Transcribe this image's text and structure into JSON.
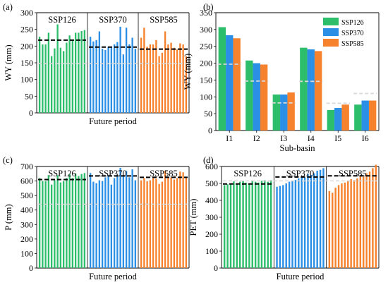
{
  "colors": {
    "SSP126": "#2dbe6c",
    "SSP370": "#2b8fe6",
    "SSP585": "#f6822d",
    "mean_line": "#000000",
    "ref_line": "#d8d8d8"
  },
  "chart_data": [
    {
      "id": "a",
      "type": "bar",
      "panel_label": "(a)",
      "xlabel": "Future period",
      "ylabel": "WY (mm)",
      "ylim": [
        0,
        300
      ],
      "yticks": [
        0,
        50,
        100,
        150,
        200,
        250,
        300
      ],
      "grid": false,
      "series": [
        {
          "name": "SSP126",
          "values": [
            228,
            205,
            205,
            240,
            170,
            193,
            265,
            195,
            185,
            210,
            232,
            218,
            240,
            240,
            245,
            248
          ]
        },
        {
          "name": "SSP370",
          "values": [
            228,
            214,
            218,
            244,
            192,
            188,
            198,
            195,
            205,
            212,
            258,
            175,
            255,
            205,
            225,
            192
          ]
        },
        {
          "name": "SSP585",
          "values": [
            225,
            255,
            198,
            205,
            205,
            218,
            170,
            180,
            244,
            205,
            210,
            195,
            190,
            208,
            205,
            170
          ]
        }
      ],
      "mean_lines": [
        218,
        197,
        191
      ],
      "reference_value": 148
    },
    {
      "id": "b",
      "type": "bar",
      "panel_label": "(b)",
      "xlabel": "Sub-basin",
      "ylabel": "WY (mm)",
      "ylim": [
        0,
        350
      ],
      "yticks": [
        0,
        50,
        100,
        150,
        200,
        250,
        300,
        350
      ],
      "grid": false,
      "legend": "top-right",
      "categories": [
        "I1",
        "I2",
        "I3",
        "I4",
        "I5",
        "I6"
      ],
      "series": [
        {
          "name": "SSP126",
          "values": [
            307,
            208,
            107,
            246,
            61,
            77
          ]
        },
        {
          "name": "SSP370",
          "values": [
            283,
            200,
            107,
            241,
            67,
            89
          ]
        },
        {
          "name": "SSP585",
          "values": [
            274,
            196,
            113,
            236,
            77,
            89
          ]
        }
      ],
      "reference_values": [
        197,
        147,
        82,
        146,
        81,
        110
      ]
    },
    {
      "id": "c",
      "type": "bar",
      "panel_label": "(c)",
      "xlabel": "Future period",
      "ylabel": "P (mm)",
      "ylim": [
        0,
        700
      ],
      "yticks": [
        0,
        100,
        200,
        300,
        400,
        500,
        600,
        700
      ],
      "grid": false,
      "series": [
        {
          "name": "SSP126",
          "values": [
            620,
            600,
            600,
            640,
            575,
            605,
            640,
            590,
            600,
            620,
            648,
            620,
            650,
            635,
            648,
            655
          ]
        },
        {
          "name": "SSP370",
          "values": [
            655,
            595,
            585,
            605,
            600,
            625,
            640,
            575,
            620,
            640,
            690,
            640,
            670,
            625,
            680,
            605
          ]
        },
        {
          "name": "SSP585",
          "values": [
            605,
            620,
            598,
            605,
            620,
            615,
            580,
            595,
            670,
            630,
            625,
            610,
            620,
            665,
            660,
            625
          ]
        }
      ],
      "mean_lines": [
        610,
        635,
        625
      ],
      "reference_value": 440
    },
    {
      "id": "d",
      "type": "bar",
      "panel_label": "(d)",
      "xlabel": "Future period",
      "ylabel": "PET (mm)",
      "ylim": [
        0,
        600
      ],
      "yticks": [
        0,
        100,
        200,
        300,
        400,
        500,
        600
      ],
      "grid": false,
      "series": [
        {
          "name": "SSP126",
          "values": [
            490,
            495,
            500,
            512,
            495,
            510,
            515,
            505,
            500,
            518,
            510,
            505,
            515,
            520,
            510,
            520
          ]
        },
        {
          "name": "SSP370",
          "values": [
            480,
            485,
            490,
            500,
            510,
            515,
            520,
            530,
            540,
            535,
            555,
            550,
            560,
            575,
            580,
            590
          ]
        },
        {
          "name": "SSP585",
          "values": [
            455,
            445,
            475,
            490,
            500,
            505,
            515,
            525,
            520,
            530,
            545,
            540,
            560,
            570,
            590,
            610
          ]
        }
      ],
      "mean_lines": [
        497,
        538,
        545
      ],
      "reference_value": 515
    }
  ]
}
